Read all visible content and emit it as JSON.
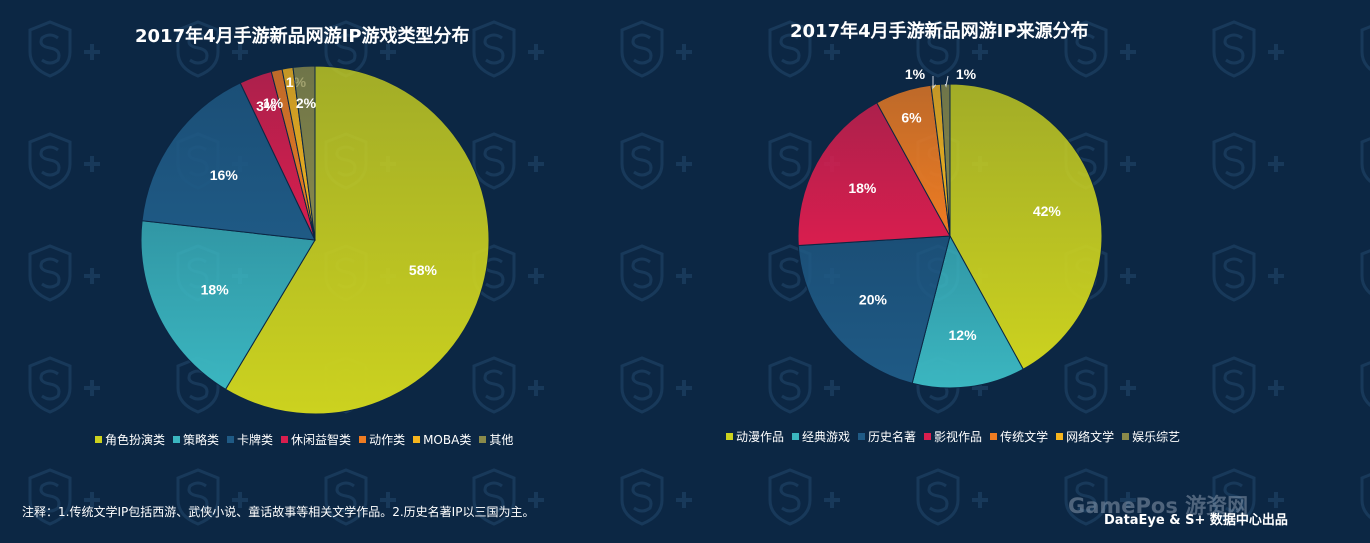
{
  "chart_data": [
    {
      "type": "pie",
      "title": "2017年4月手游新品网游IP游戏类型分布",
      "legend_position": "bottom",
      "categories": [
        "角色扮演类",
        "策略类",
        "卡牌类",
        "休闲益智类",
        "动作类",
        "MOBA类",
        "其他"
      ],
      "values": [
        58,
        18,
        16,
        3,
        1,
        1,
        2
      ],
      "labels": [
        "58%",
        "18%",
        "16%",
        "3%",
        "1%",
        "1%",
        "2%"
      ],
      "colors": [
        "#ccd21f",
        "#3bb6c0",
        "#1f5a85",
        "#d91e4e",
        "#ef7c22",
        "#f6b51e",
        "#8a8a4a"
      ]
    },
    {
      "type": "pie",
      "title": "2017年4月手游新品网游IP来源分布",
      "legend_position": "bottom",
      "categories": [
        "动漫作品",
        "经典游戏",
        "历史名著",
        "影视作品",
        "传统文学",
        "网络文学",
        "娱乐综艺"
      ],
      "values": [
        42,
        12,
        20,
        18,
        6,
        1,
        1
      ],
      "labels": [
        "42%",
        "12%",
        "20%",
        "18%",
        "6%",
        "1%",
        "1%"
      ],
      "colors": [
        "#ccd21f",
        "#3bb6c0",
        "#1f5a85",
        "#d91e4e",
        "#ef7c22",
        "#f6b51e",
        "#8a8a4a"
      ]
    }
  ],
  "footnote": "注释：1.传统文学IP包括西游、武侠小说、童话故事等相关文学作品。2.历史名著IP以三国为主。",
  "credit": "DataEye & S+ 数据中心出品",
  "watermark": "GamePos 游资网"
}
